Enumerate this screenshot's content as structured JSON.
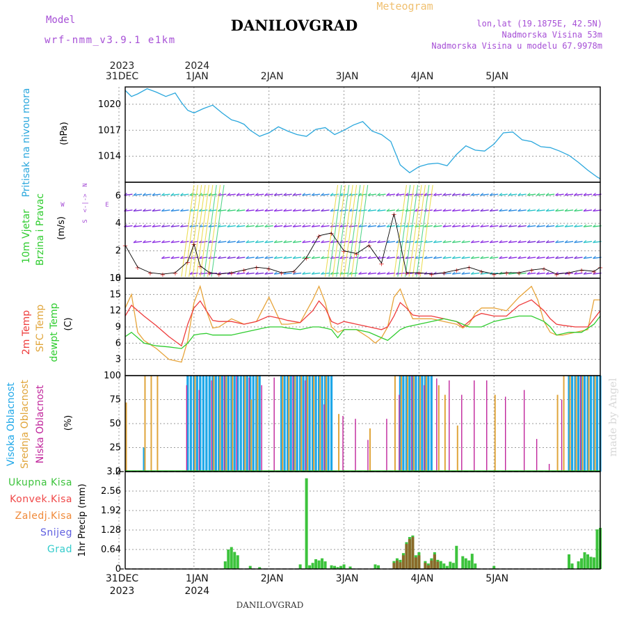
{
  "header": {
    "model_label": "Model",
    "model_name": "wrf-nmm_v3.9.1 e1km",
    "title": "DANILOVGRAD",
    "subtitle": "Meteogram",
    "coords": "lon,lat (19.1875E, 42.5N)",
    "elevation": "Nadmorska Visina 53m",
    "model_elevation": "Nadmorska Visina u modelu 67.9978m",
    "watermark": "made by Angel",
    "footer": "DANILOVGRAD"
  },
  "axis": {
    "days": [
      "31DEC",
      "1JAN",
      "2JAN",
      "3JAN",
      "4JAN",
      "5JAN"
    ],
    "years_top": [
      {
        "day_index": 0,
        "year": "2023"
      },
      {
        "day_index": 1,
        "year": "2024"
      }
    ],
    "years_bottom": [
      {
        "day_index": 0,
        "year": "2023"
      },
      {
        "day_index": 1,
        "year": "2024"
      }
    ],
    "hours_range": [
      -22,
      130
    ]
  },
  "colors": {
    "pressure": "#2aa7dd",
    "temp2m": "#ee3b3b",
    "sfc": "#e7a43a",
    "dew": "#2ecc2e",
    "high_cloud": "#1ea7e8",
    "mid_cloud": "#e0a53b",
    "low_cloud": "#c0249b",
    "total_precip": "#3cc33c",
    "conv_precip": "#f04848",
    "snow": "#5f5fe0",
    "grid_text": "#000000"
  },
  "panels": {
    "pressure": {
      "label_main": "Pritisak na nivou mora",
      "label_unit": "(hPa)",
      "ylim": [
        1011,
        1022
      ],
      "ticks": [
        "1014",
        "1017",
        "1020"
      ]
    },
    "wind": {
      "label_main": "10m Vjetar",
      "label_sub": "Brzina i Pravac",
      "label_unit": "(m/s)",
      "ylim": [
        0,
        7
      ],
      "ticks": [
        "0",
        "2",
        "4",
        "6"
      ],
      "compass": {
        "n": "N",
        "s": "S",
        "e": "E",
        "w": "W"
      }
    },
    "temp": {
      "label_a": "2m Temp",
      "label_b": "SFC Temp",
      "label_c": "dewpt Temp",
      "label_unit": "(C)",
      "ylim": [
        0,
        18
      ],
      "ticks": [
        "3",
        "6",
        "9",
        "12",
        "15",
        "18"
      ]
    },
    "cloud": {
      "label_a": "Visoka Oblacnost",
      "label_b": "Srednja Oblacnost",
      "label_c": "Niska Oblacnost",
      "label_unit": "(%)",
      "ylim": [
        0,
        100
      ],
      "ticks": [
        "0",
        "25",
        "50",
        "75",
        "100"
      ]
    },
    "precip": {
      "label_unit": "1hr Precip (mm)",
      "ylim": [
        0,
        3.2
      ],
      "ticks": [
        "0",
        "0.64",
        "1.28",
        "1.92",
        "2.56",
        "3.2"
      ],
      "legend": [
        {
          "name": "Ukupna Kisa",
          "color": "#3cc33c"
        },
        {
          "name": "Konvek.Kisa",
          "color": "#f04848"
        },
        {
          "name": "Zaledj.Kisa",
          "color": "#f08a3a"
        },
        {
          "name": "Snijeg",
          "color": "#5f5fe0"
        },
        {
          "name": "Grad",
          "color": "#33cccc"
        }
      ]
    }
  },
  "chart_data": {
    "type": "line",
    "title": "DANILOVGRAD",
    "x_unit": "hours relative to 1JAN 2024 00:00",
    "pressure": {
      "x": [
        -22,
        -20,
        -18,
        -15,
        -12,
        -9,
        -6,
        -4,
        -2,
        0,
        3,
        6,
        9,
        12,
        14,
        16,
        18,
        21,
        24,
        27,
        30,
        33,
        36,
        39,
        42,
        45,
        48,
        51,
        54,
        57,
        60,
        63,
        66,
        69,
        72,
        75,
        78,
        81,
        84,
        87,
        90,
        93,
        96,
        99,
        102,
        105,
        108,
        111,
        114,
        117,
        120,
        123,
        126,
        129,
        130
      ],
      "y": [
        1021.6,
        1020.9,
        1021.2,
        1021.8,
        1021.4,
        1020.9,
        1021.3,
        1020.2,
        1019.3,
        1019.0,
        1019.5,
        1019.9,
        1019.0,
        1018.2,
        1018.0,
        1017.7,
        1017.0,
        1016.3,
        1016.7,
        1017.4,
        1016.9,
        1016.5,
        1016.3,
        1017.1,
        1017.3,
        1016.5,
        1017.0,
        1017.6,
        1018.0,
        1016.9,
        1016.5,
        1015.7,
        1013.0,
        1012.1,
        1012.8,
        1013.1,
        1013.2,
        1012.9,
        1014.2,
        1015.2,
        1014.7,
        1014.6,
        1015.4,
        1016.7,
        1016.8,
        1015.9,
        1015.7,
        1015.1,
        1015.0,
        1014.6,
        1014.1,
        1013.3,
        1012.4,
        1011.6,
        1011.4
      ],
      "ylim": [
        1011,
        1022
      ]
    },
    "wind_speed": {
      "x": [
        -22,
        -18,
        -14,
        -10,
        -6,
        -2,
        0,
        2,
        5,
        8,
        12,
        16,
        20,
        24,
        28,
        32,
        36,
        40,
        44,
        48,
        52,
        56,
        60,
        64,
        68,
        72,
        76,
        80,
        84,
        88,
        92,
        96,
        100,
        104,
        108,
        112,
        116,
        120,
        124,
        128,
        130
      ],
      "y": [
        2.4,
        0.8,
        0.4,
        0.3,
        0.4,
        1.2,
        2.5,
        0.9,
        0.4,
        0.3,
        0.4,
        0.6,
        0.8,
        0.7,
        0.4,
        0.5,
        1.5,
        3.1,
        3.3,
        2.0,
        1.8,
        2.4,
        1.1,
        4.7,
        0.4,
        0.4,
        0.3,
        0.4,
        0.6,
        0.8,
        0.5,
        0.3,
        0.4,
        0.4,
        0.6,
        0.7,
        0.3,
        0.4,
        0.6,
        0.5,
        0.8
      ],
      "ylim": [
        0,
        7
      ]
    },
    "temp_2m": {
      "x": [
        -22,
        -20,
        -16,
        -12,
        -8,
        -4,
        -2,
        0,
        2,
        4,
        6,
        8,
        12,
        16,
        20,
        24,
        28,
        30,
        34,
        38,
        40,
        42,
        44,
        46,
        48,
        52,
        56,
        60,
        62,
        64,
        66,
        68,
        70,
        72,
        76,
        80,
        84,
        86,
        88,
        90,
        92,
        96,
        100,
        104,
        108,
        112,
        114,
        116,
        118,
        122,
        126,
        130
      ],
      "y": [
        11,
        13,
        11,
        9.2,
        7.2,
        5.5,
        9.5,
        12.5,
        13.8,
        12,
        10.2,
        10,
        10,
        9.5,
        10,
        11,
        10.5,
        10.2,
        9.8,
        12,
        13.8,
        12.5,
        10,
        9.5,
        10,
        9.5,
        9,
        8.5,
        9,
        11,
        13.5,
        12.5,
        11.2,
        11,
        11,
        10.5,
        10,
        9,
        10,
        11,
        11.5,
        11,
        11,
        13,
        14,
        12,
        10.5,
        9.5,
        9.3,
        9,
        9,
        12
      ],
      "ylim": [
        0,
        18
      ]
    },
    "temp_sfc": {
      "x": [
        -22,
        -20,
        -18,
        -16,
        -12,
        -8,
        -4,
        -2,
        0,
        2,
        4,
        6,
        8,
        12,
        16,
        20,
        24,
        28,
        30,
        34,
        38,
        40,
        42,
        44,
        46,
        48,
        52,
        56,
        58,
        60,
        62,
        64,
        66,
        68,
        70,
        72,
        76,
        80,
        84,
        86,
        88,
        90,
        92,
        96,
        100,
        104,
        108,
        110,
        112,
        114,
        116,
        118,
        122,
        126,
        128,
        130
      ],
      "y": [
        12.5,
        15,
        8,
        6.5,
        5,
        3,
        2.5,
        6.5,
        13.5,
        16.5,
        12,
        8.8,
        9,
        10.5,
        9.5,
        10,
        14.5,
        9.5,
        9.5,
        9.8,
        14,
        16.5,
        13.5,
        9,
        8,
        8.5,
        8.5,
        7,
        6,
        7,
        9,
        14.5,
        16,
        13,
        10.5,
        10.5,
        10.5,
        10,
        9.5,
        8.8,
        9.5,
        11.5,
        12.5,
        12.5,
        12,
        14.5,
        16.5,
        14,
        10,
        8,
        7.5,
        7.5,
        8,
        8.5,
        14,
        14
      ],
      "ylim": [
        0,
        18
      ]
    },
    "dewpoint": {
      "x": [
        -22,
        -20,
        -16,
        -12,
        -8,
        -4,
        -2,
        0,
        2,
        4,
        6,
        8,
        12,
        16,
        20,
        24,
        28,
        30,
        34,
        38,
        40,
        42,
        44,
        46,
        48,
        52,
        56,
        60,
        62,
        64,
        66,
        68,
        72,
        76,
        80,
        84,
        86,
        88,
        92,
        96,
        100,
        104,
        108,
        112,
        114,
        116,
        120,
        124,
        128,
        130
      ],
      "y": [
        7.2,
        8,
        6,
        5.5,
        5.3,
        5,
        6,
        7.5,
        7.7,
        7.8,
        7.5,
        7.5,
        7.5,
        8,
        8.5,
        9,
        9,
        8.8,
        8.5,
        9,
        9,
        8.8,
        8.5,
        7,
        8.5,
        8.5,
        8,
        7,
        6.5,
        7.5,
        8.5,
        9,
        9.5,
        10,
        10.5,
        10,
        9.5,
        9,
        9,
        10,
        10.5,
        11,
        11,
        10,
        9,
        7.5,
        8,
        8,
        9.5,
        11
      ],
      "ylim": [
        0,
        18
      ]
    },
    "cloud_high": {
      "x": [
        -16,
        -2,
        0,
        2,
        4,
        6,
        7,
        8,
        9,
        10,
        11,
        12,
        14,
        16,
        18,
        20,
        28,
        30,
        32,
        34,
        36,
        38,
        40,
        42,
        66,
        68,
        70,
        72,
        74,
        120,
        122,
        124,
        126,
        128,
        130
      ],
      "y": [
        25,
        100,
        100,
        100,
        100,
        100,
        100,
        100,
        100,
        100,
        100,
        100,
        100,
        100,
        100,
        100,
        100,
        100,
        100,
        100,
        100,
        100,
        100,
        100,
        100,
        100,
        100,
        100,
        100,
        100,
        100,
        100,
        100,
        100,
        100
      ],
      "ylim": [
        0,
        100
      ]
    },
    "cloud_mid": {
      "x": [
        -22,
        -16,
        -14,
        -12,
        0,
        6,
        8,
        10,
        12,
        16,
        18,
        20,
        28,
        30,
        32,
        34,
        36,
        38,
        40,
        42,
        46,
        56,
        64,
        66,
        68,
        70,
        72,
        74,
        78,
        80,
        84,
        96,
        116,
        118,
        120,
        122,
        124,
        126,
        128
      ],
      "y": [
        72,
        100,
        100,
        100,
        100,
        100,
        100,
        100,
        100,
        100,
        75,
        100,
        100,
        100,
        100,
        100,
        100,
        100,
        100,
        100,
        60,
        45,
        100,
        100,
        100,
        100,
        100,
        100,
        90,
        80,
        48,
        80,
        80,
        100,
        100,
        100,
        100,
        100,
        100
      ],
      "ylim": [
        0,
        100
      ]
    },
    "cloud_low": {
      "x": [
        -2,
        2,
        6,
        10,
        14,
        18,
        22,
        26,
        32,
        36,
        42,
        48,
        52,
        56,
        62,
        66,
        70,
        74,
        78,
        82,
        86,
        90,
        94,
        100,
        106,
        110,
        114,
        118,
        124
      ],
      "y": [
        90,
        85,
        95,
        100,
        100,
        98,
        90,
        98,
        100,
        95,
        70,
        58,
        55,
        33,
        55,
        80,
        100,
        90,
        97,
        95,
        80,
        95,
        95,
        78,
        85,
        34,
        8,
        75,
        100
      ],
      "ylim": [
        0,
        100
      ]
    },
    "precip_total": {
      "x": [
        10,
        11,
        12,
        13,
        14,
        18,
        21,
        34,
        36,
        37,
        38,
        39,
        40,
        41,
        42,
        44,
        45,
        46,
        47,
        48,
        50,
        58,
        59,
        64,
        65,
        66,
        67,
        68,
        69,
        70,
        71,
        72,
        74,
        75,
        76,
        77,
        78,
        79,
        80,
        81,
        82,
        83,
        84,
        86,
        87,
        88,
        89,
        90,
        96,
        120,
        121,
        123,
        124,
        125,
        126,
        127,
        128,
        129,
        130
      ],
      "y": [
        0.25,
        0.64,
        0.72,
        0.56,
        0.45,
        0.1,
        0.06,
        0.15,
        2.98,
        0.12,
        0.2,
        0.32,
        0.28,
        0.35,
        0.25,
        0.12,
        0.1,
        0.06,
        0.1,
        0.15,
        0.08,
        0.15,
        0.12,
        0.26,
        0.35,
        0.3,
        0.52,
        0.88,
        1.05,
        1.1,
        0.45,
        0.55,
        0.26,
        0.18,
        0.35,
        0.55,
        0.3,
        0.26,
        0.18,
        0.1,
        0.24,
        0.2,
        0.76,
        0.42,
        0.35,
        0.28,
        0.5,
        0.18,
        0.1,
        0.48,
        0.18,
        0.25,
        0.35,
        0.55,
        0.48,
        0.4,
        0.38,
        1.3,
        1.35
      ],
      "ylim": [
        0,
        3.2
      ]
    },
    "precip_conv": {
      "x": [
        64,
        65,
        66,
        67,
        68,
        69,
        70,
        71,
        72,
        74,
        75,
        76,
        77,
        78
      ],
      "y": [
        0.2,
        0.28,
        0.22,
        0.45,
        0.82,
        0.98,
        1.05,
        0.38,
        0.45,
        0.2,
        0.12,
        0.28,
        0.48,
        0.24
      ],
      "ylim": [
        0,
        3.2
      ]
    }
  }
}
